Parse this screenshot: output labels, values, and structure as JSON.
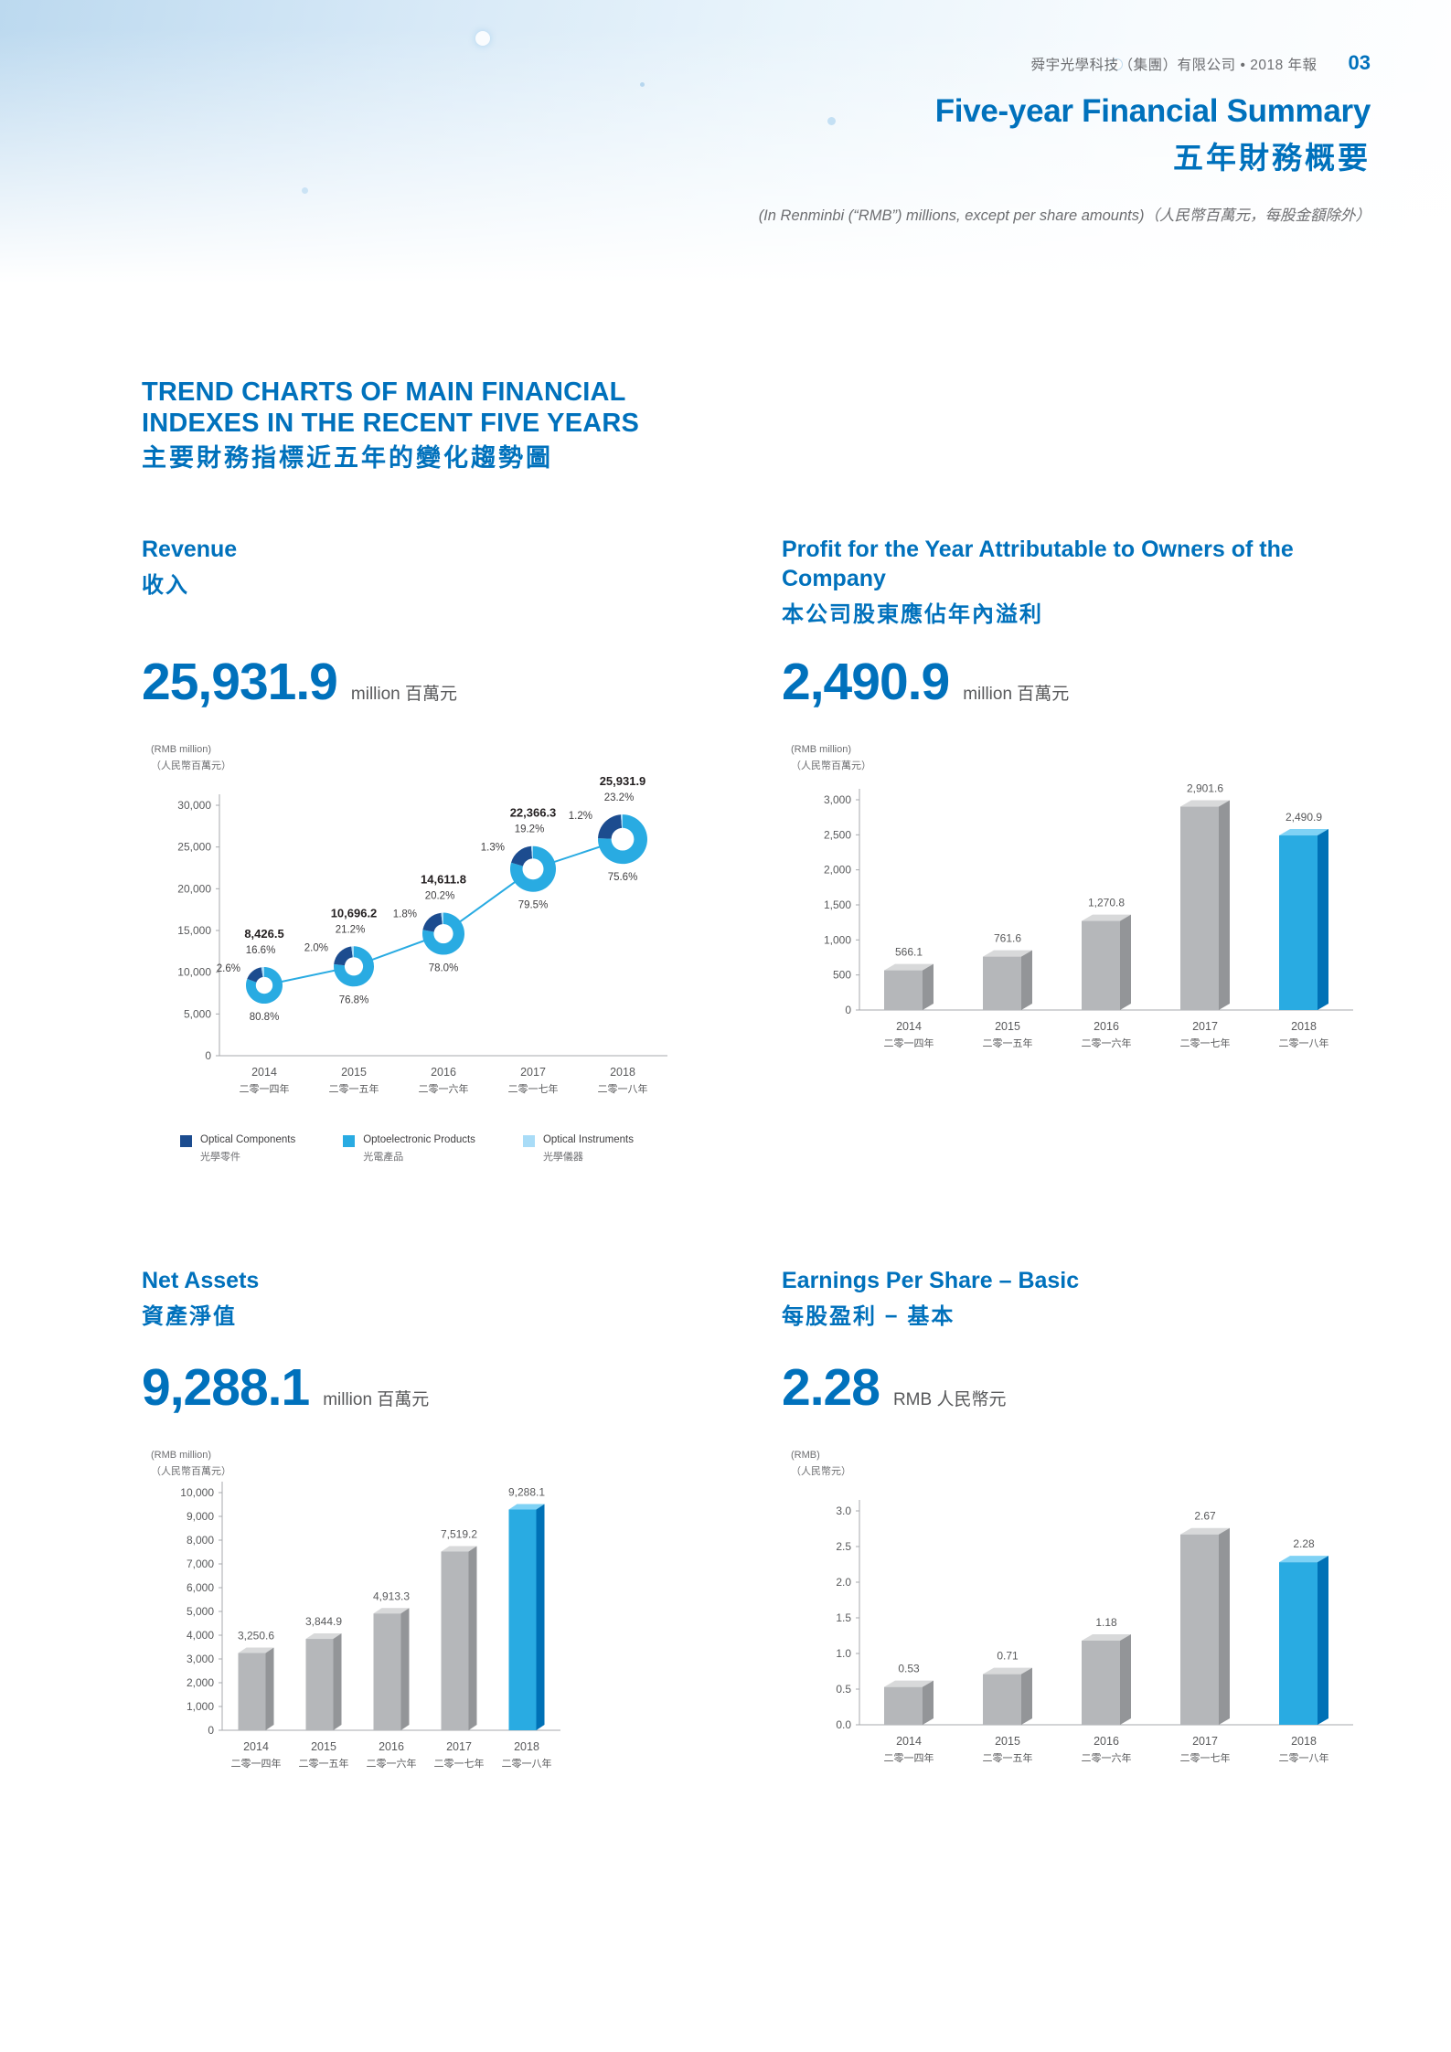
{
  "page": {
    "header": {
      "company": "舜宇光學科技（集團）有限公司 • 2018 年報",
      "page_number": "03"
    },
    "title_en": "Five-year Financial Summary",
    "title_zh": "五年財務概要",
    "subtitle": "(In Renminbi (“RMB”) millions, except per share amounts)（人民幣百萬元，每股金額除外）",
    "section_title_line1": "TREND CHARTS OF MAIN FINANCIAL",
    "section_title_line2": "INDEXES IN THE RECENT FIVE YEARS",
    "section_title_zh": "主要財務指標近五年的變化趨勢圖"
  },
  "colors": {
    "accent": "#0071bc",
    "text_dark": "#231f20",
    "text_grey": "#6d6e71",
    "text_mid": "#58595b",
    "axis": "#a7a9ac",
    "bar_grey": "#b5b7ba",
    "bar_grey_side": "#939598",
    "bar_grey_top": "#d8d9da",
    "bar_blue": "#29abe2",
    "bar_blue_side": "#0071b6",
    "bar_blue_top": "#7fd2f5",
    "line_blue": "#29abe2",
    "donut_components": "#1c4c8f",
    "donut_optoelectronic": "#29abe2",
    "donut_instruments": "#a9dcf7"
  },
  "chart_data": [
    {
      "id": "revenue",
      "type": "line",
      "title_en": "Revenue",
      "title_zh": "收入",
      "headline_value": "25,931.9",
      "headline_unit": "million 百萬元",
      "axis_unit_en": "(RMB million)",
      "axis_unit_zh": "（人民幣百萬元）",
      "ylim": [
        0,
        30000
      ],
      "yticks": [
        "0",
        "5,000",
        "10,000",
        "15,000",
        "20,000",
        "25,000",
        "30,000"
      ],
      "categories": [
        {
          "year": "2014",
          "zh": "二零一四年"
        },
        {
          "year": "2015",
          "zh": "二零一五年"
        },
        {
          "year": "2016",
          "zh": "二零一六年"
        },
        {
          "year": "2017",
          "zh": "二零一七年"
        },
        {
          "year": "2018",
          "zh": "二零一八年"
        }
      ],
      "values": [
        8426.5,
        10696.2,
        14611.8,
        22366.3,
        25931.9
      ],
      "value_labels": [
        "8,426.5",
        "10,696.2",
        "14,611.8",
        "22,366.3",
        "25,931.9"
      ],
      "composition_pct": {
        "optical_components": [
          "16.6%",
          "21.2%",
          "20.2%",
          "19.2%",
          "23.2%"
        ],
        "optical_instruments": [
          "2.6%",
          "2.0%",
          "1.8%",
          "1.3%",
          "1.2%"
        ],
        "optoelectronic_products": [
          "80.8%",
          "76.8%",
          "78.0%",
          "79.5%",
          "75.6%"
        ]
      },
      "legend": [
        {
          "label_en": "Optical Components",
          "label_zh": "光學零件",
          "color": "#1c4c8f"
        },
        {
          "label_en": "Optoelectronic Products",
          "label_zh": "光電產品",
          "color": "#29abe2"
        },
        {
          "label_en": "Optical Instruments",
          "label_zh": "光學儀器",
          "color": "#a9dcf7"
        }
      ]
    },
    {
      "id": "profit",
      "type": "bar",
      "title_en": "Profit for the Year Attributable to Owners of the Company",
      "title_zh": "本公司股東應佔年內溢利",
      "headline_value": "2,490.9",
      "headline_unit": "million 百萬元",
      "axis_unit_en": "(RMB million)",
      "axis_unit_zh": "（人民幣百萬元）",
      "ylim": [
        0,
        3000
      ],
      "yticks": [
        "0",
        "500",
        "1,000",
        "1,500",
        "2,000",
        "2,500",
        "3,000"
      ],
      "categories": [
        {
          "year": "2014",
          "zh": "二零一四年"
        },
        {
          "year": "2015",
          "zh": "二零一五年"
        },
        {
          "year": "2016",
          "zh": "二零一六年"
        },
        {
          "year": "2017",
          "zh": "二零一七年"
        },
        {
          "year": "2018",
          "zh": "二零一八年"
        }
      ],
      "values": [
        566.1,
        761.6,
        1270.8,
        2901.6,
        2490.9
      ],
      "value_labels": [
        "566.1",
        "761.6",
        "1,270.8",
        "2,901.6",
        "2,490.9"
      ],
      "highlight_index": 4
    },
    {
      "id": "net_assets",
      "type": "bar",
      "title_en": "Net Assets",
      "title_zh": "資產淨值",
      "headline_value": "9,288.1",
      "headline_unit": "million 百萬元",
      "axis_unit_en": "(RMB million)",
      "axis_unit_zh": "（人民幣百萬元）",
      "ylim": [
        0,
        10000
      ],
      "yticks": [
        "0",
        "1,000",
        "2,000",
        "3,000",
        "4,000",
        "5,000",
        "6,000",
        "7,000",
        "8,000",
        "9,000",
        "10,000"
      ],
      "categories": [
        {
          "year": "2014",
          "zh": "二零一四年"
        },
        {
          "year": "2015",
          "zh": "二零一五年"
        },
        {
          "year": "2016",
          "zh": "二零一六年"
        },
        {
          "year": "2017",
          "zh": "二零一七年"
        },
        {
          "year": "2018",
          "zh": "二零一八年"
        }
      ],
      "values": [
        3250.6,
        3844.9,
        4913.3,
        7519.2,
        9288.1
      ],
      "value_labels": [
        "3,250.6",
        "3,844.9",
        "4,913.3",
        "7,519.2",
        "9,288.1"
      ],
      "highlight_index": 4
    },
    {
      "id": "eps",
      "type": "bar",
      "title_en": "Earnings Per Share – Basic",
      "title_zh": "每股盈利 − 基本",
      "headline_value": "2.28",
      "headline_unit": "RMB 人民幣元",
      "axis_unit_en": "(RMB)",
      "axis_unit_zh": "（人民幣元）",
      "ylim": [
        0,
        3
      ],
      "yticks": [
        "0.0",
        "0.5",
        "1.0",
        "1.5",
        "2.0",
        "2.5",
        "3.0"
      ],
      "categories": [
        {
          "year": "2014",
          "zh": "二零一四年"
        },
        {
          "year": "2015",
          "zh": "二零一五年"
        },
        {
          "year": "2016",
          "zh": "二零一六年"
        },
        {
          "year": "2017",
          "zh": "二零一七年"
        },
        {
          "year": "2018",
          "zh": "二零一八年"
        }
      ],
      "values": [
        0.53,
        0.71,
        1.18,
        2.67,
        2.28
      ],
      "value_labels": [
        "0.53",
        "0.71",
        "1.18",
        "2.67",
        "2.28"
      ],
      "highlight_index": 4
    }
  ]
}
